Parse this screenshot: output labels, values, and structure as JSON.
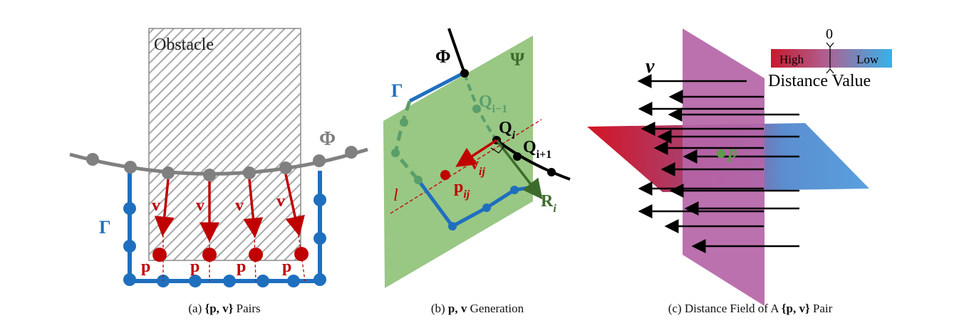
{
  "panel_a": {
    "obstacle_label": "Obstacle",
    "phi_label": "Φ",
    "gamma_label": "Γ",
    "v_label": "v",
    "p_label": "p",
    "caption_prefix": "(a) ",
    "caption_set": "{p, v}",
    "caption_suffix": " Pairs"
  },
  "panel_b": {
    "phi_label": "Φ",
    "psi_label": "Ψ",
    "gamma_label": "Γ",
    "q_prev_label": "Q",
    "q_prev_sub": "i−1",
    "q_label": "Q",
    "q_sub": "i",
    "q_next_label": "Q",
    "q_next_sub": "i+1",
    "v_label": "v",
    "v_sub": "ij",
    "p_label": "p",
    "p_sub": "ij",
    "l_label": "l",
    "r_label": "R",
    "r_sub": "i",
    "caption_prefix": "(b) ",
    "caption_set": "p, v",
    "caption_suffix": " Generation"
  },
  "panel_c": {
    "v_label": "v",
    "p_label": "p",
    "legend_zero": "0",
    "legend_high": "High",
    "legend_low": "Low",
    "legend_title": "Distance Value",
    "caption_prefix": "(c) Distance Field of A ",
    "caption_set": "{p, v}",
    "caption_suffix": " Pair"
  },
  "colors": {
    "blue": "#1f6fbf",
    "red": "#c00000",
    "gray": "#808080",
    "green_plane": "#93c47d",
    "dark_green": "#3d6b2b",
    "pink_plane": "#b565a7"
  }
}
